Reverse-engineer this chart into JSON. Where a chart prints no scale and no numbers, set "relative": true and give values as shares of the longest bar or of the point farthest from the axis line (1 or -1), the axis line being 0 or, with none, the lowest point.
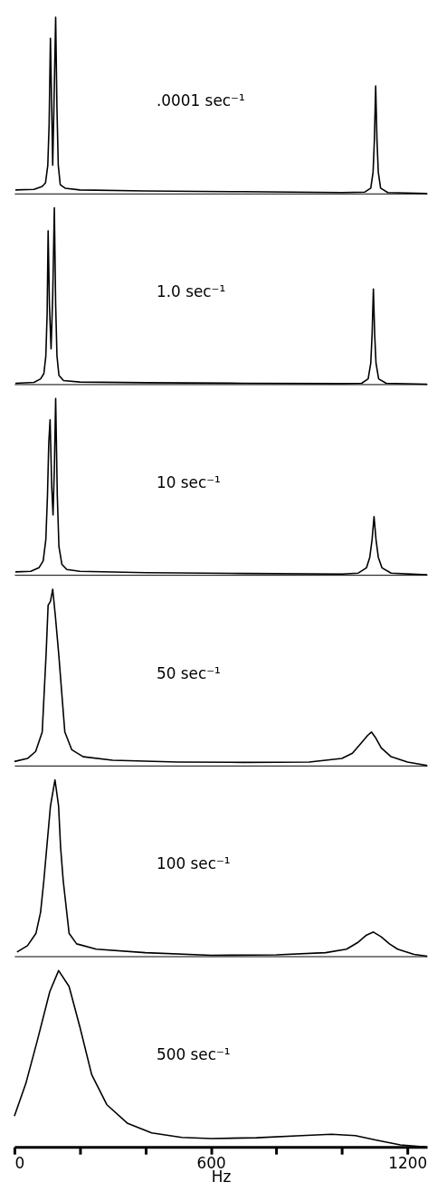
{
  "chart_data": [
    {
      "type": "line",
      "title": ".0001 sec⁻¹",
      "relative": true,
      "xlim": [
        0,
        1260
      ],
      "tick_labels": false,
      "series": [
        {
          "color": "#000000",
          "x": [
            3,
            60,
            85,
            95,
            102,
            106,
            110,
            114,
            117,
            121,
            126,
            130,
            134,
            140,
            155,
            200,
            400,
            700,
            1000,
            1070,
            1088,
            1095,
            1099,
            1103,
            1107,
            1111,
            1118,
            1140,
            1260
          ],
          "values": [
            0.02,
            0.023,
            0.04,
            0.06,
            0.16,
            0.39,
            0.88,
            0.48,
            0.16,
            0.52,
            1.0,
            0.48,
            0.16,
            0.05,
            0.03,
            0.02,
            0.014,
            0.01,
            0.005,
            0.008,
            0.03,
            0.12,
            0.3,
            0.61,
            0.3,
            0.12,
            0.03,
            0.005,
            0
          ]
        }
      ]
    },
    {
      "type": "line",
      "title": "1.0 sec⁻¹",
      "relative": true,
      "xlim": [
        0,
        1260
      ],
      "tick_labels": false,
      "series": [
        {
          "color": "#000000",
          "x": [
            3,
            60,
            80,
            90,
            96,
            100,
            103,
            107,
            112,
            117,
            122,
            126,
            130,
            136,
            150,
            200,
            400,
            700,
            1000,
            1060,
            1080,
            1088,
            1092,
            1096,
            1100,
            1104,
            1112,
            1135,
            1260
          ],
          "values": [
            0.005,
            0.01,
            0.03,
            0.06,
            0.16,
            0.4,
            0.87,
            0.45,
            0.2,
            0.5,
            1.0,
            0.45,
            0.16,
            0.05,
            0.02,
            0.012,
            0.008,
            0.005,
            0.003,
            0.005,
            0.03,
            0.12,
            0.28,
            0.54,
            0.28,
            0.12,
            0.03,
            0.005,
            0
          ]
        }
      ]
    },
    {
      "type": "line",
      "title": "10 sec⁻¹",
      "relative": true,
      "xlim": [
        0,
        1260
      ],
      "tick_labels": false,
      "series": [
        {
          "color": "#000000",
          "x": [
            3,
            50,
            75,
            88,
            96,
            101,
            105,
            109,
            114,
            118,
            122,
            126,
            131,
            136,
            145,
            160,
            200,
            400,
            700,
            1000,
            1050,
            1075,
            1085,
            1092,
            1098,
            1104,
            1111,
            1122,
            1150,
            1260
          ],
          "values": [
            0.017,
            0.02,
            0.04,
            0.08,
            0.2,
            0.45,
            0.75,
            0.88,
            0.5,
            0.34,
            0.6,
            1.0,
            0.45,
            0.16,
            0.06,
            0.03,
            0.02,
            0.012,
            0.008,
            0.005,
            0.01,
            0.04,
            0.1,
            0.2,
            0.33,
            0.2,
            0.1,
            0.04,
            0.01,
            0
          ]
        }
      ]
    },
    {
      "type": "line",
      "title": "50 sec⁻¹",
      "relative": true,
      "xlim": [
        0,
        1260
      ],
      "tick_labels": false,
      "series": [
        {
          "color": "#000000",
          "x": [
            0,
            40,
            65,
            85,
            97,
            103,
            110,
            117,
            125,
            135,
            154,
            175,
            210,
            300,
            500,
            700,
            900,
            1000,
            1032,
            1060,
            1078,
            1090,
            1102,
            1120,
            1150,
            1200,
            1260
          ],
          "values": [
            0.023,
            0.04,
            0.08,
            0.19,
            0.64,
            0.91,
            0.93,
            1.0,
            0.85,
            0.64,
            0.19,
            0.09,
            0.05,
            0.03,
            0.02,
            0.018,
            0.02,
            0.04,
            0.07,
            0.13,
            0.17,
            0.19,
            0.16,
            0.1,
            0.05,
            0.02,
            0
          ]
        }
      ]
    },
    {
      "type": "line",
      "title": "100 sec⁻¹",
      "relative": true,
      "xlim": [
        0,
        1260
      ],
      "tick_labels": false,
      "series": [
        {
          "color": "#000000",
          "x": [
            8,
            40,
            66,
            80,
            90,
            99,
            110,
            124,
            135,
            141,
            149,
            167,
            190,
            250,
            400,
            600,
            800,
            950,
            1014,
            1050,
            1075,
            1096,
            1120,
            1145,
            1170,
            1220,
            1260
          ],
          "values": [
            0.024,
            0.06,
            0.13,
            0.25,
            0.43,
            0.62,
            0.85,
            1.0,
            0.85,
            0.62,
            0.43,
            0.13,
            0.07,
            0.04,
            0.02,
            0.005,
            0.008,
            0.02,
            0.04,
            0.08,
            0.12,
            0.137,
            0.11,
            0.07,
            0.04,
            0.01,
            0
          ]
        }
      ]
    },
    {
      "type": "line",
      "title": "500 sec⁻¹",
      "relative": true,
      "xlim": [
        0,
        1260
      ],
      "tick_labels": "x",
      "xlabel": "Hz",
      "xticks": [
        0,
        {
          "value": 200,
          "label": null
        },
        {
          "value": 400,
          "label": null
        },
        600,
        {
          "value": 800,
          "label": null
        },
        {
          "value": 1000,
          "label": null
        },
        1200
      ],
      "series": [
        {
          "color": "#000000",
          "x": [
            0,
            35,
            71,
            108,
            135,
            167,
            200,
            236,
            282,
            346,
            419,
            511,
            601,
            739,
            877,
            968,
            1041,
            1105,
            1178,
            1256
          ],
          "values": [
            0.174,
            0.36,
            0.61,
            0.88,
            1.0,
            0.91,
            0.68,
            0.41,
            0.24,
            0.133,
            0.079,
            0.054,
            0.047,
            0.052,
            0.064,
            0.072,
            0.064,
            0.038,
            0.011,
            0
          ]
        }
      ]
    }
  ]
}
